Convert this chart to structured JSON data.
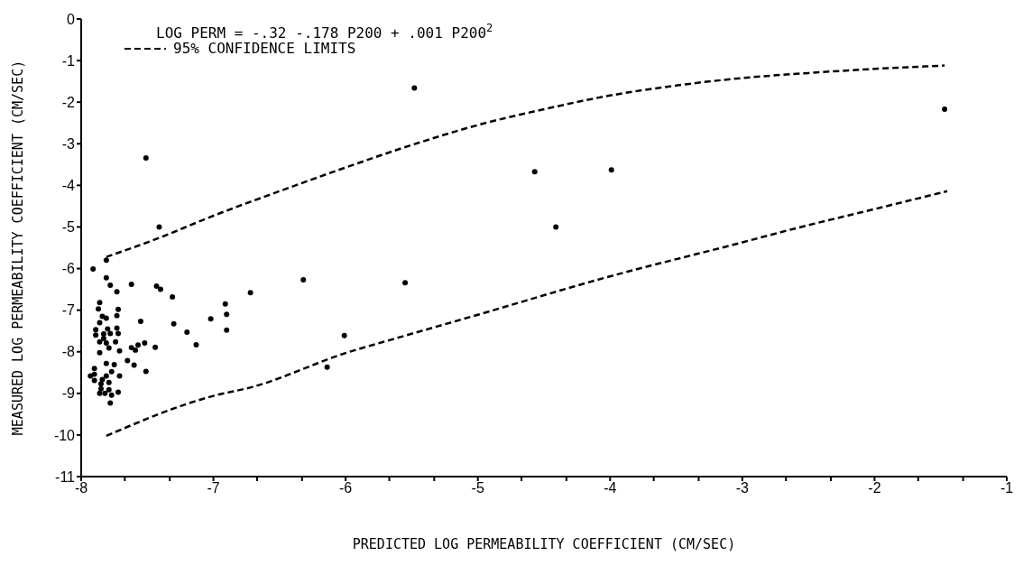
{
  "chart_data": {
    "type": "scatter",
    "xlabel": "PREDICTED LOG PERMEABILITY COEFFICIENT (CM/SEC)",
    "ylabel": "MEASURED LOG PERMEABILITY COEFFICIENT (CM/SEC)",
    "annotations": [
      "LOG PERM = -.32 -.178 P200 + .001 P200$^{2}$"
    ],
    "xlim": [
      -8,
      -1
    ],
    "ylim": [
      -11,
      0
    ],
    "xticks": [
      -8,
      {
        "value": -7.67,
        "label": null
      },
      {
        "value": -7.33,
        "label": null
      },
      -7,
      {
        "value": -6.67,
        "label": null
      },
      {
        "value": -6.33,
        "label": null
      },
      -6,
      {
        "value": -5.67,
        "label": null
      },
      {
        "value": -5.33,
        "label": null
      },
      -5,
      {
        "value": -4.67,
        "label": null
      },
      {
        "value": -4.33,
        "label": null
      },
      -4,
      {
        "value": -3.67,
        "label": null
      },
      {
        "value": -3.33,
        "label": null
      },
      -3,
      {
        "value": -2.67,
        "label": null
      },
      {
        "value": -2.33,
        "label": null
      },
      -2,
      {
        "value": -1.67,
        "label": null
      },
      {
        "value": -1.33,
        "label": null
      },
      -1
    ],
    "yticks": [
      0,
      -1,
      -2,
      -3,
      -4,
      -5,
      -6,
      -7,
      -8,
      -9,
      -10,
      -11
    ],
    "grid": false,
    "legend": "top left",
    "series": [
      {
        "color": "#000000",
        "marker": "circle",
        "x": [
          -7.91,
          -7.81,
          -7.81,
          -7.78,
          -7.73,
          -7.62,
          -7.43,
          -7.4,
          -7.31,
          -6.72,
          -6.32,
          -5.55,
          -7.86,
          -7.87,
          -7.84,
          -7.81,
          -7.72,
          -7.73,
          -7.86,
          -7.89,
          -7.89,
          -7.83,
          -7.83,
          -7.8,
          -7.78,
          -7.73,
          -7.72,
          -7.86,
          -7.81,
          -7.74,
          -7.79,
          -7.71,
          -7.86,
          -7.55,
          -7.3,
          -7.2,
          -7.13,
          -7.02,
          -6.91,
          -6.9,
          -6.9,
          -7.62,
          -7.59,
          -7.57,
          -7.52,
          -7.44,
          -7.65,
          -7.6,
          -7.51,
          -7.81,
          -7.75,
          -7.77,
          -7.71,
          -7.9,
          -7.93,
          -7.9,
          -7.9,
          -7.81,
          -7.84,
          -7.79,
          -7.85,
          -7.85,
          -7.79,
          -7.86,
          -7.82,
          -7.77,
          -7.72,
          -7.78,
          -6.14,
          -6.01,
          -7.41,
          -7.51,
          -5.48,
          -4.57,
          -3.99,
          -4.41,
          -1.47
        ],
        "values": [
          -6.01,
          -5.8,
          -6.22,
          -6.4,
          -6.56,
          -6.38,
          -6.42,
          -6.5,
          -6.68,
          -6.58,
          -6.27,
          -6.34,
          -6.82,
          -6.97,
          -7.15,
          -7.19,
          -6.98,
          -7.13,
          -7.3,
          -7.47,
          -7.6,
          -7.57,
          -7.68,
          -7.45,
          -7.56,
          -7.43,
          -7.56,
          -7.76,
          -7.79,
          -7.76,
          -7.91,
          -7.98,
          -8.02,
          -7.27,
          -7.33,
          -7.53,
          -7.83,
          -7.21,
          -6.85,
          -7.1,
          -7.48,
          -7.9,
          -7.96,
          -7.84,
          -7.79,
          -7.89,
          -8.21,
          -8.32,
          -8.47,
          -8.28,
          -8.31,
          -8.48,
          -8.58,
          -8.4,
          -8.58,
          -8.54,
          -8.69,
          -8.58,
          -8.67,
          -8.74,
          -8.77,
          -8.89,
          -8.91,
          -9,
          -9,
          -9.04,
          -8.97,
          -9.23,
          -8.37,
          -7.61,
          -5,
          -3.34,
          -1.66,
          -3.67,
          -3.63,
          -5,
          -2.17
        ]
      },
      {
        "type": "line",
        "name": "95% CONFIDENCE LIMITS",
        "color": "#000000",
        "line_style": "dashed",
        "marker": "none",
        "x": [
          -7.81,
          -7.4,
          -7,
          -6.5,
          -6,
          -5.5,
          -5,
          -4.5,
          -4,
          -3.5,
          -3,
          -2.5,
          -2,
          -1.47
        ],
        "values": [
          -5.72,
          -5.25,
          -4.73,
          -4.14,
          -3.57,
          -3.03,
          -2.55,
          -2.17,
          -1.84,
          -1.6,
          -1.42,
          -1.3,
          -1.2,
          -1.12
        ]
      },
      {
        "type": "line",
        "color": "#000000",
        "line_style": "dashed",
        "marker": "none",
        "x": [
          -7.81,
          -7,
          -6.71,
          -6,
          -5.58,
          -5,
          -4.05,
          -3,
          -2.63,
          -2,
          -1.45
        ],
        "values": [
          -10.02,
          -9.06,
          -8.85,
          -8.03,
          -7.64,
          -7.11,
          -6.23,
          -5.37,
          -5.06,
          -4.57,
          -4.14
        ]
      }
    ]
  }
}
